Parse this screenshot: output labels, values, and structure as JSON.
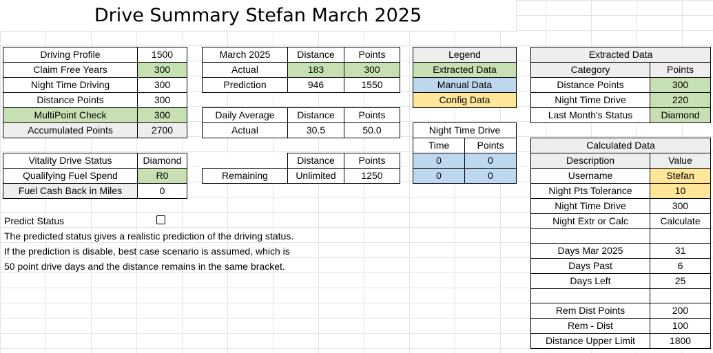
{
  "title": "Drive Summary Stefan March 2025",
  "profile": [
    {
      "label": "Driving Profile",
      "value": "1500",
      "label_bg": "",
      "value_bg": ""
    },
    {
      "label": "Claim Free Years",
      "value": "300",
      "label_bg": "",
      "value_bg": "green"
    },
    {
      "label": "Night Time Driving",
      "value": "300",
      "label_bg": "",
      "value_bg": ""
    },
    {
      "label": "Distance Points",
      "value": "300",
      "label_bg": "",
      "value_bg": ""
    },
    {
      "label": "MultiPoint Check",
      "value": "300",
      "label_bg": "green",
      "value_bg": "green"
    },
    {
      "label": "Accumulated Points",
      "value": "2700",
      "label_bg": "gray",
      "value_bg": "gray"
    }
  ],
  "vitality": [
    {
      "label": "Vitality Drive Status",
      "value": "Diamond",
      "value_bg": ""
    },
    {
      "label": "Qualifying Fuel Spend",
      "value": "R0",
      "value_bg": "green"
    },
    {
      "label": "Fuel Cash Back in Miles",
      "value": "0",
      "value_bg": ""
    }
  ],
  "month": {
    "headers": [
      "March 2025",
      "Distance",
      "Points"
    ],
    "rows": [
      {
        "label": "Actual",
        "distance": "183",
        "points": "300",
        "bg": "green"
      },
      {
        "label": "Prediction",
        "distance": "946",
        "points": "1550",
        "bg": ""
      }
    ]
  },
  "daily": {
    "headers": [
      "Daily Average",
      "Distance",
      "Points"
    ],
    "rows": [
      {
        "label": "Actual",
        "distance": "30.5",
        "points": "50.0"
      }
    ]
  },
  "remaining": {
    "headers": [
      "",
      "Distance",
      "Points"
    ],
    "rows": [
      {
        "label": "Remaining",
        "distance": "Unlimited",
        "points": "1250"
      }
    ]
  },
  "legend": {
    "header": "Legend",
    "items": [
      {
        "label": "Extracted Data",
        "bg": "green"
      },
      {
        "label": "Manual Data",
        "bg": "blue"
      },
      {
        "label": "Config Data",
        "bg": "yellow"
      }
    ]
  },
  "night_drive": {
    "header": "Night Time Drive",
    "col_headers": [
      "Time",
      "Points"
    ],
    "rows": [
      [
        "0",
        "0"
      ],
      [
        "0",
        "0"
      ]
    ]
  },
  "extracted": {
    "header": "Extracted Data",
    "col_headers": [
      "Category",
      "Points"
    ],
    "rows": [
      {
        "label": "Distance Points",
        "value": "300"
      },
      {
        "label": "Night Time Drive",
        "value": "220"
      },
      {
        "label": "Last Month's Status",
        "value": "Diamond"
      }
    ]
  },
  "calculated": {
    "header": "Calculated Data",
    "col_headers": [
      "Description",
      "Value"
    ],
    "rows": [
      {
        "label": "Username",
        "value": "Stefan",
        "bg": "yellow"
      },
      {
        "label": "Night Pts Tolerance",
        "value": "10",
        "bg": "yellow"
      },
      {
        "label": "Night Time Drive",
        "value": "300",
        "bg": ""
      },
      {
        "label": "Night Extr or Calc",
        "value": "Calculate",
        "bg": ""
      },
      {
        "label": "",
        "value": "",
        "bg": ""
      },
      {
        "label": "Days Mar 2025",
        "value": "31",
        "bg": ""
      },
      {
        "label": "Days Past",
        "value": "6",
        "bg": ""
      },
      {
        "label": "Days Left",
        "value": "25",
        "bg": ""
      },
      {
        "label": "",
        "value": "",
        "bg": ""
      },
      {
        "label": "Rem Dist Points",
        "value": "200",
        "bg": ""
      },
      {
        "label": "Rem - Dist",
        "value": "100",
        "bg": ""
      },
      {
        "label": "Distance Upper Limit",
        "value": "1800",
        "bg": ""
      }
    ]
  },
  "predict": {
    "label": "Predict Status",
    "checked": false,
    "lines": [
      "The predicted status gives a realistic prediction of the driving status.",
      "If the prediction is disable, best case scenario is assumed, which is",
      "50 point drive days and the distance remains in the same bracket."
    ]
  }
}
